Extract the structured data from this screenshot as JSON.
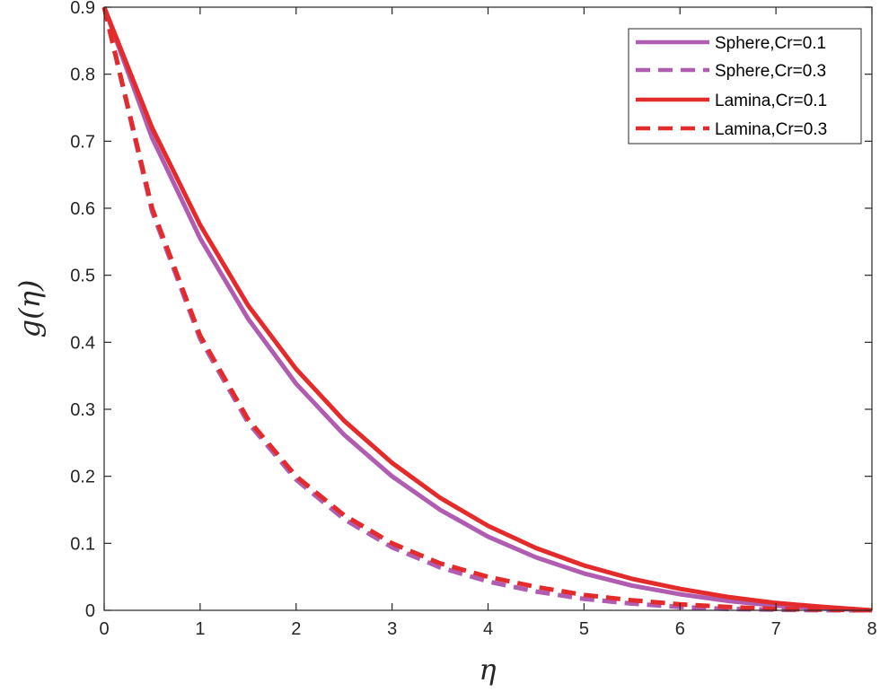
{
  "chart_data": {
    "type": "line",
    "title": "",
    "xlabel": "η",
    "ylabel": "g(η)",
    "xlim": [
      0,
      8
    ],
    "ylim": [
      0,
      0.9
    ],
    "xticks": [
      "0",
      "1",
      "2",
      "3",
      "4",
      "5",
      "6",
      "7",
      "8"
    ],
    "yticks": [
      "0",
      "0.1",
      "0.2",
      "0.3",
      "0.4",
      "0.5",
      "0.6",
      "0.7",
      "0.8",
      "0.9"
    ],
    "grid": false,
    "legend_position": "top-right",
    "x": [
      0,
      0.5,
      1,
      1.5,
      2,
      2.5,
      3,
      3.5,
      4,
      4.5,
      5,
      5.5,
      6,
      6.5,
      7,
      7.5,
      8
    ],
    "series": [
      {
        "name": "Sphere,Cr=0.1",
        "color": "#b05cb0",
        "dash": "solid",
        "values": [
          0.9,
          0.705,
          0.555,
          0.435,
          0.338,
          0.262,
          0.2,
          0.15,
          0.11,
          0.079,
          0.055,
          0.037,
          0.024,
          0.014,
          0.007,
          0.003,
          0
        ]
      },
      {
        "name": "Sphere,Cr=0.3",
        "color": "#b05cb0",
        "dash": "dashed",
        "values": [
          0.9,
          0.595,
          0.405,
          0.28,
          0.195,
          0.136,
          0.094,
          0.064,
          0.043,
          0.028,
          0.017,
          0.01,
          0.005,
          0.002,
          0.001,
          0,
          0
        ]
      },
      {
        "name": "Lamina,Cr=0.1",
        "color": "#e32b2b",
        "dash": "solid",
        "values": [
          0.9,
          0.72,
          0.575,
          0.455,
          0.36,
          0.283,
          0.22,
          0.168,
          0.126,
          0.093,
          0.067,
          0.047,
          0.032,
          0.02,
          0.011,
          0.005,
          0
        ]
      },
      {
        "name": "Lamina,Cr=0.3",
        "color": "#e32b2b",
        "dash": "dashed",
        "values": [
          0.9,
          0.6,
          0.41,
          0.285,
          0.2,
          0.142,
          0.1,
          0.07,
          0.05,
          0.035,
          0.023,
          0.015,
          0.009,
          0.005,
          0.002,
          0.001,
          0
        ]
      }
    ]
  }
}
